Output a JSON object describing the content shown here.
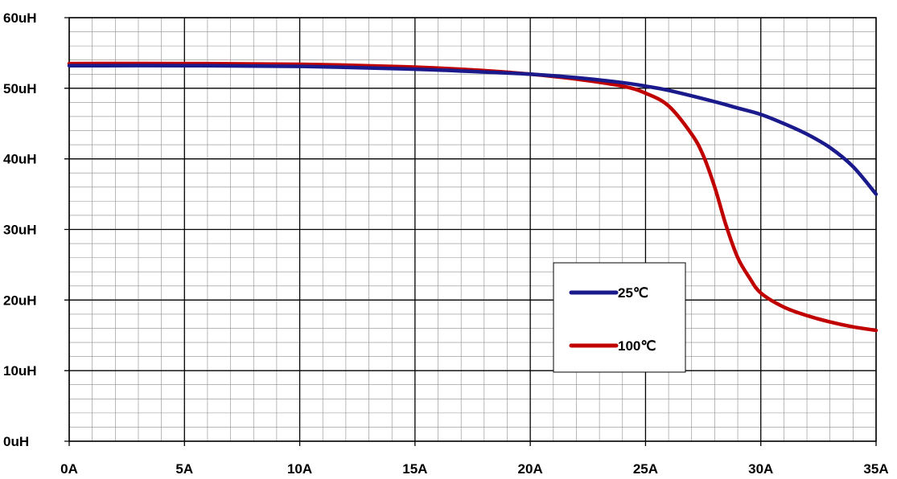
{
  "chart_data": {
    "type": "line",
    "title": "",
    "xlabel": "",
    "ylabel": "",
    "xlim": [
      0,
      35
    ],
    "ylim": [
      0,
      60
    ],
    "x_ticks": [
      0,
      5,
      10,
      15,
      20,
      25,
      30,
      35
    ],
    "x_tick_labels": [
      "0A",
      "5A",
      "10A",
      "15A",
      "20A",
      "25A",
      "30A",
      "35A"
    ],
    "y_ticks": [
      0,
      10,
      20,
      30,
      40,
      50,
      60
    ],
    "y_tick_labels": [
      "0uH",
      "10uH",
      "20uH",
      "30uH",
      "40uH",
      "50uH",
      "60uH"
    ],
    "grid": true,
    "minor_grid": {
      "x_per_major": 5,
      "y_per_major": 5
    },
    "legend_position": "center-right",
    "series": [
      {
        "name": "25℃",
        "color": "#1a1a8c",
        "x": [
          0,
          5,
          10,
          15,
          18,
          20,
          22,
          24,
          25,
          26,
          28,
          29,
          30,
          31,
          32,
          33,
          34,
          35
        ],
        "y": [
          53.2,
          53.2,
          53.1,
          52.7,
          52.3,
          52.0,
          51.5,
          50.8,
          50.3,
          49.7,
          48.1,
          47.2,
          46.3,
          45.0,
          43.5,
          41.6,
          38.9,
          35.0
        ]
      },
      {
        "name": "100℃",
        "color": "#c00000",
        "x": [
          0,
          5,
          10,
          15,
          18,
          20,
          22,
          24,
          25,
          26,
          27,
          27.5,
          28,
          28.5,
          29,
          29.5,
          30,
          31,
          32,
          33,
          34,
          35
        ],
        "y": [
          53.5,
          53.5,
          53.4,
          53.0,
          52.5,
          52.0,
          51.3,
          50.3,
          49.3,
          47.5,
          43.5,
          40.5,
          36.0,
          30.5,
          26.0,
          23.2,
          21.0,
          19.0,
          17.8,
          16.9,
          16.2,
          15.7
        ]
      }
    ]
  }
}
